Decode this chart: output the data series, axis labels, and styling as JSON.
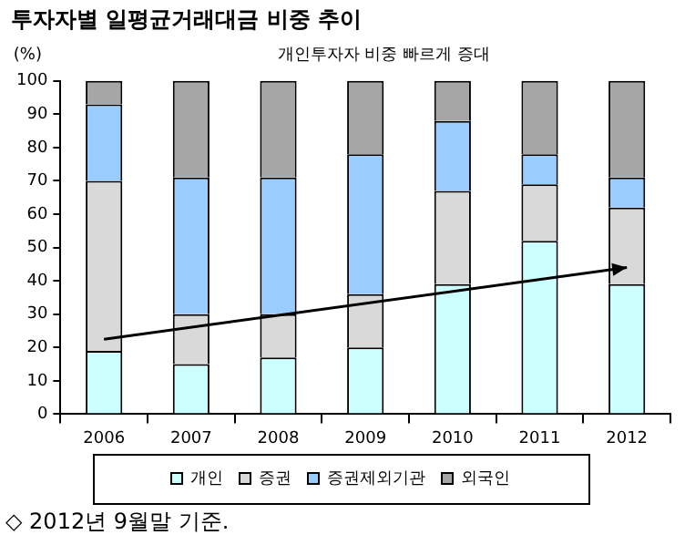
{
  "chart_data": {
    "type": "bar",
    "title": "투자자별 일평균거래대금 비중 추이",
    "ylabel": "(%)",
    "annotations": [
      "개인투자자 비중 빠르게 증대",
      "◇ 2012년 9월말 기준."
    ],
    "categories": [
      "2006",
      "2007",
      "2008",
      "2009",
      "2010",
      "2011",
      "2012"
    ],
    "stacked": true,
    "series": [
      {
        "name": "개인",
        "color": "#ccffff",
        "values": [
          19,
          15,
          17,
          20,
          39,
          52,
          39
        ]
      },
      {
        "name": "증권",
        "color": "#d9d9d9",
        "values": [
          51,
          15,
          13,
          16,
          28,
          17,
          23
        ]
      },
      {
        "name": "증권제외기관",
        "color": "#99ccff",
        "values": [
          23,
          41,
          41,
          42,
          21,
          9,
          9
        ]
      },
      {
        "name": "외국인",
        "color": "#a6a6a6",
        "values": [
          7,
          29,
          29,
          22,
          12,
          22,
          29
        ]
      },
      {
        "type": "line",
        "color": "#000000",
        "values": [
          22.5,
          null,
          null,
          null,
          null,
          null,
          44
        ]
      }
    ],
    "ylim": [
      0,
      100
    ],
    "yticks": [
      0,
      10,
      20,
      30,
      40,
      50,
      60,
      70,
      80,
      90,
      100
    ],
    "grid": false,
    "legend": "bottom"
  }
}
